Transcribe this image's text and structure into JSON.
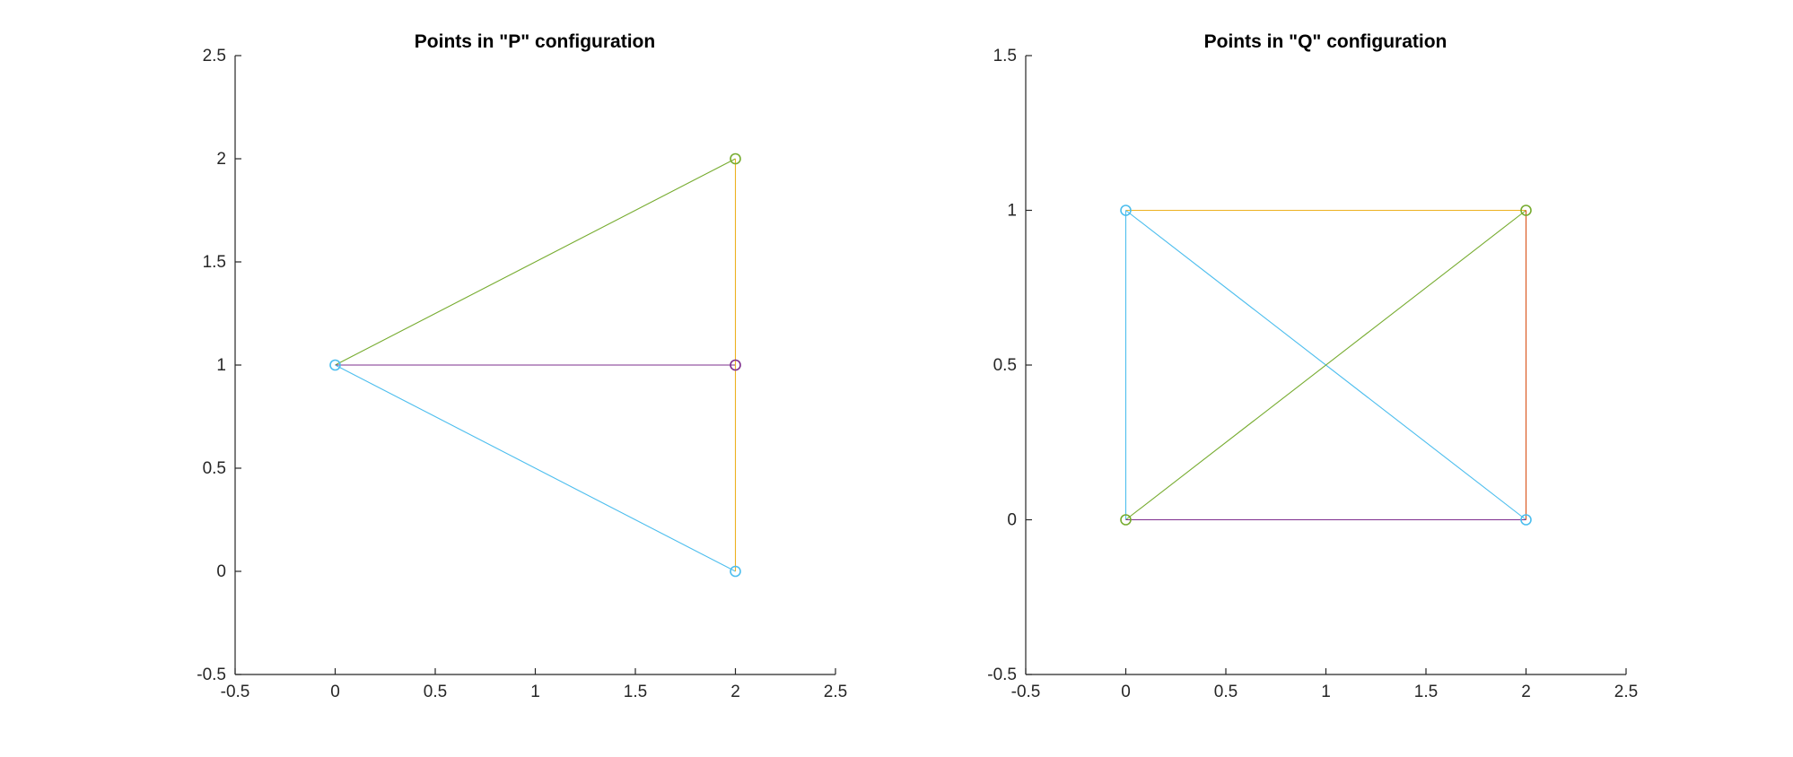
{
  "chart_data": [
    {
      "type": "line",
      "title": "Points in \"P\" configuration",
      "xlabel": "",
      "ylabel": "",
      "xlim": [
        -0.5,
        2.5
      ],
      "ylim": [
        -0.5,
        2.5
      ],
      "xticks": [
        -0.5,
        0,
        0.5,
        1,
        1.5,
        2,
        2.5
      ],
      "yticks": [
        -0.5,
        0,
        0.5,
        1,
        1.5,
        2,
        2.5
      ],
      "xtick_labels": [
        "-0.5",
        "0",
        "0.5",
        "1",
        "1.5",
        "2",
        "2.5"
      ],
      "ytick_labels": [
        "-0.5",
        "0",
        "0.5",
        "1",
        "1.5",
        "2",
        "2.5"
      ],
      "grid": false,
      "segments": [
        {
          "x": [
            0,
            2
          ],
          "y": [
            1,
            2
          ],
          "color": "#77AC30"
        },
        {
          "x": [
            0,
            2
          ],
          "y": [
            1,
            1
          ],
          "color": "#7E2F8E"
        },
        {
          "x": [
            0,
            2
          ],
          "y": [
            1,
            0
          ],
          "color": "#4DBEEE"
        },
        {
          "x": [
            2,
            2
          ],
          "y": [
            0,
            2
          ],
          "color": "#EDB120"
        }
      ],
      "points": [
        {
          "x": 0,
          "y": 1,
          "color": "#4DBEEE"
        },
        {
          "x": 2,
          "y": 2,
          "color": "#77AC30"
        },
        {
          "x": 2,
          "y": 1,
          "color": "#7E2F8E"
        },
        {
          "x": 2,
          "y": 0,
          "color": "#4DBEEE"
        }
      ]
    },
    {
      "type": "line",
      "title": "Points in \"Q\" configuration",
      "xlabel": "",
      "ylabel": "",
      "xlim": [
        -0.5,
        2.5
      ],
      "ylim": [
        -0.5,
        1.5
      ],
      "xticks": [
        -0.5,
        0,
        0.5,
        1,
        1.5,
        2,
        2.5
      ],
      "yticks": [
        -0.5,
        0,
        0.5,
        1,
        1.5
      ],
      "xtick_labels": [
        "-0.5",
        "0",
        "0.5",
        "1",
        "1.5",
        "2",
        "2.5"
      ],
      "ytick_labels": [
        "-0.5",
        "0",
        "0.5",
        "1",
        "1.5"
      ],
      "grid": false,
      "segments": [
        {
          "x": [
            0,
            2
          ],
          "y": [
            1,
            1
          ],
          "color": "#EDB120"
        },
        {
          "x": [
            0,
            2
          ],
          "y": [
            1,
            0
          ],
          "color": "#4DBEEE"
        },
        {
          "x": [
            0,
            0
          ],
          "y": [
            0,
            1
          ],
          "color": "#4DBEEE"
        },
        {
          "x": [
            0,
            2
          ],
          "y": [
            0,
            1
          ],
          "color": "#77AC30"
        },
        {
          "x": [
            0,
            2
          ],
          "y": [
            0,
            0
          ],
          "color": "#7E2F8E"
        },
        {
          "x": [
            2,
            2
          ],
          "y": [
            0,
            1
          ],
          "color": "#D95319"
        }
      ],
      "points": [
        {
          "x": 0,
          "y": 1,
          "color": "#4DBEEE"
        },
        {
          "x": 2,
          "y": 1,
          "color": "#77AC30"
        },
        {
          "x": 0,
          "y": 0,
          "color": "#77AC30"
        },
        {
          "x": 2,
          "y": 0,
          "color": "#4DBEEE"
        }
      ]
    }
  ]
}
